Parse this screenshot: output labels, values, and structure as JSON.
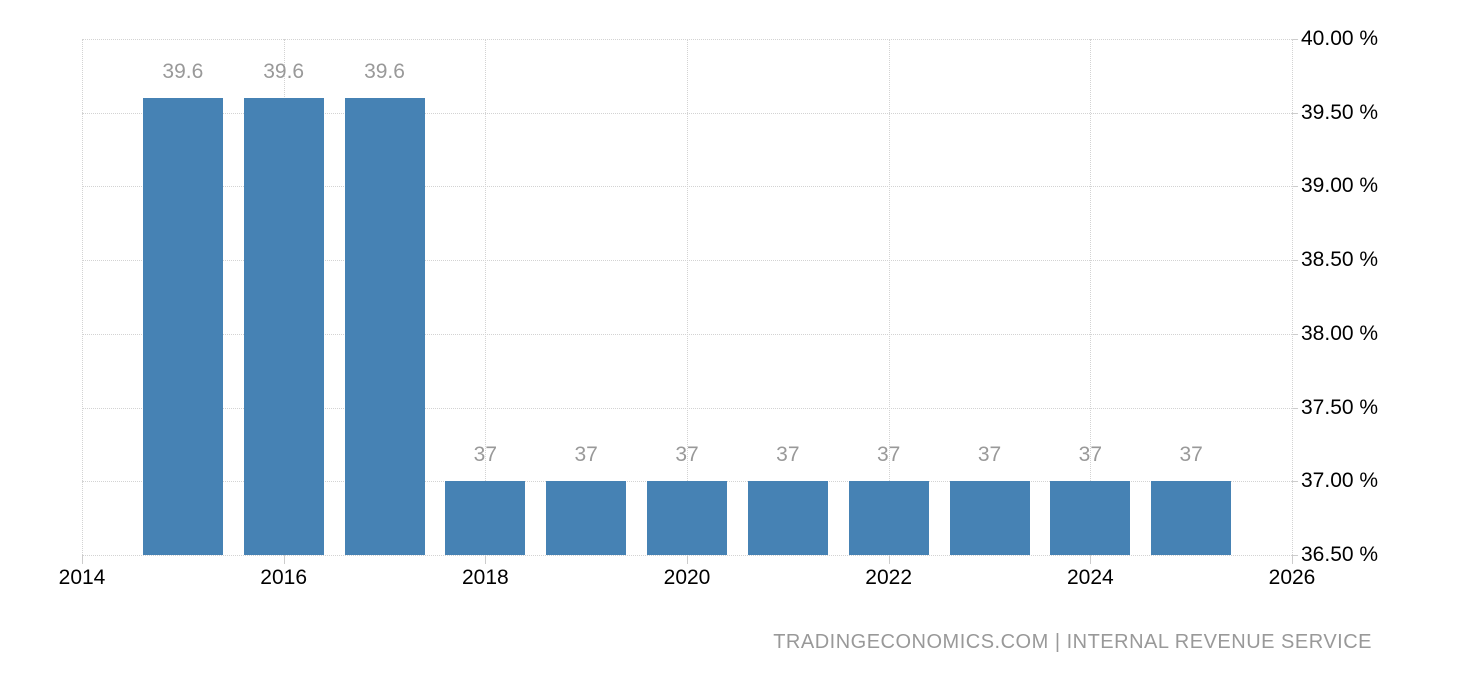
{
  "chart_data": {
    "type": "bar",
    "title": "",
    "x": [
      2015,
      2016,
      2017,
      2018,
      2019,
      2020,
      2021,
      2022,
      2023,
      2024,
      2025
    ],
    "values": [
      39.6,
      39.6,
      39.6,
      37,
      37,
      37,
      37,
      37,
      37,
      37,
      37
    ],
    "bar_labels": [
      "39.6",
      "39.6",
      "39.6",
      "37",
      "37",
      "37",
      "37",
      "37",
      "37",
      "37",
      "37"
    ],
    "xlim": [
      2014,
      2026
    ],
    "ylim": [
      36.5,
      40.0
    ],
    "x_tick_values": [
      2014,
      2016,
      2018,
      2020,
      2022,
      2024,
      2026
    ],
    "x_tick_labels": [
      "2014",
      "2016",
      "2018",
      "2020",
      "2022",
      "2024",
      "2026"
    ],
    "y_tick_values": [
      40.0,
      39.5,
      39.0,
      38.5,
      38.0,
      37.5,
      37.0,
      36.5
    ],
    "y_tick_labels": [
      "40.00 %",
      "39.50 %",
      "39.00 %",
      "38.50 %",
      "38.00 %",
      "37.50 %",
      "37.00 %",
      "36.50 %"
    ],
    "grid": true,
    "legend": "none",
    "attribution": "TRADINGECONOMICS.COM | INTERNAL REVENUE SERVICE",
    "colors": {
      "bar": "#4682b4",
      "grid": "#d3d3d3",
      "tick": "#cccccc",
      "value_label": "#999999",
      "axis_text": "#000000",
      "attribution_text": "#999999"
    }
  }
}
